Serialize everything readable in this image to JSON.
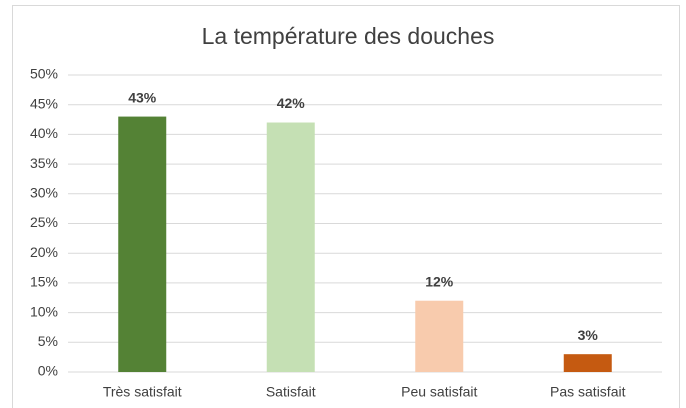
{
  "chart_data": {
    "type": "bar",
    "title": "La température des douches",
    "categories": [
      "Très satisfait",
      "Satisfait",
      "Peu satisfait",
      "Pas satisfait"
    ],
    "values": [
      43,
      42,
      12,
      3
    ],
    "value_labels": [
      "43%",
      "42%",
      "12%",
      "3%"
    ],
    "colors": [
      "#548235",
      "#c5e0b4",
      "#f8cbad",
      "#c55a11"
    ],
    "ylim": [
      0,
      50
    ],
    "yticks": [
      {
        "value": 0,
        "label": "0%"
      },
      {
        "value": 5,
        "label": "5%"
      },
      {
        "value": 10,
        "label": "10%"
      },
      {
        "value": 15,
        "label": "15%"
      },
      {
        "value": 20,
        "label": "20%"
      },
      {
        "value": 25,
        "label": "25%"
      },
      {
        "value": 30,
        "label": "30%"
      },
      {
        "value": 35,
        "label": "35%"
      },
      {
        "value": 40,
        "label": "40%"
      },
      {
        "value": 45,
        "label": "45%"
      },
      {
        "value": 50,
        "label": "50%"
      }
    ],
    "grid": true
  }
}
